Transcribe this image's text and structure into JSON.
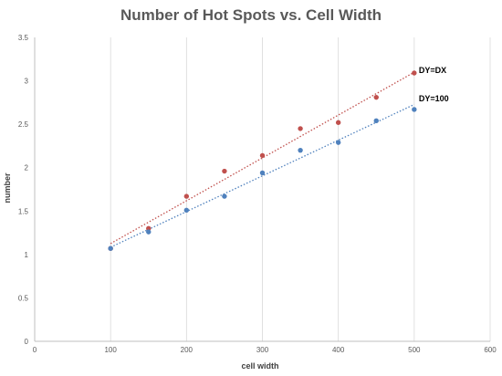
{
  "chart_data": {
    "type": "scatter",
    "title": "Number of Hot Spots vs. Cell Width",
    "xlabel": "cell width",
    "ylabel": "number",
    "xlim": [
      0,
      600
    ],
    "ylim": [
      0,
      3.5
    ],
    "x_ticks": [
      "0",
      "100",
      "200",
      "300",
      "400",
      "500",
      "600"
    ],
    "y_ticks": [
      "0",
      "0.5",
      "1",
      "1.5",
      "2",
      "2.5",
      "3",
      "3.5"
    ],
    "grid": "vertical",
    "series": [
      {
        "name": "DY=DX",
        "color": "#c0504d",
        "x": [
          100,
          150,
          200,
          250,
          300,
          350,
          400,
          450,
          500
        ],
        "y": [
          1.07,
          1.3,
          1.67,
          1.96,
          2.14,
          2.45,
          2.52,
          2.81,
          3.09
        ],
        "trendline": "linear dotted"
      },
      {
        "name": "DY=100",
        "color": "#4f81bd",
        "x": [
          100,
          150,
          200,
          250,
          300,
          350,
          400,
          450,
          500
        ],
        "y": [
          1.07,
          1.26,
          1.51,
          1.67,
          1.94,
          2.2,
          2.29,
          2.54,
          2.67
        ],
        "trendline": "linear dotted"
      }
    ]
  }
}
